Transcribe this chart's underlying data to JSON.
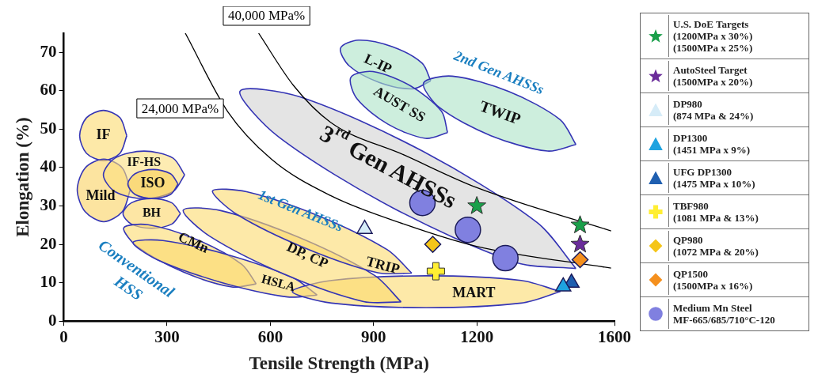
{
  "chart_data": {
    "type": "scatter",
    "xlabel": "Tensile Strength (MPa)",
    "ylabel": "Elongation (%)",
    "xlim": [
      0,
      1600
    ],
    "xticks": [
      0,
      300,
      600,
      900,
      1200,
      1600
    ],
    "ylim": [
      0,
      75
    ],
    "yticks": [
      0,
      10,
      20,
      30,
      40,
      50,
      60,
      70
    ],
    "grid": false,
    "legend": "right",
    "series": [
      {
        "type": "area",
        "name": "IF",
        "color": "#fde9a8",
        "x": [
          183,
          163,
          115,
          66,
          46,
          66,
          115,
          163,
          183
        ],
        "values": [
          48.3,
          43.7,
          41.8,
          43.7,
          48.3,
          53.0,
          54.9,
          53.0,
          48.3
        ]
      },
      {
        "type": "area",
        "name": "Mild",
        "color": "#fce4a0",
        "x": [
          193,
          170,
          116,
          62,
          39,
          62,
          116,
          170,
          193
        ],
        "values": [
          34.2,
          28.5,
          25.9,
          28.5,
          34.2,
          39.9,
          42.2,
          39.9,
          34.2
        ]
      },
      {
        "type": "area",
        "name": "IF-HS",
        "color": "#fdecb2",
        "x": [
          351,
          317,
          233,
          149,
          115,
          149,
          233,
          317,
          351
        ],
        "values": [
          38.1,
          33.7,
          31.9,
          33.7,
          38.1,
          42.5,
          44.3,
          42.5,
          38.1
        ]
      },
      {
        "type": "area",
        "name": "ISO",
        "color": "#fbe29a",
        "x": [
          332,
          310,
          259,
          207,
          186,
          207,
          259,
          310,
          332
        ],
        "values": [
          35.7,
          33.0,
          31.9,
          33.0,
          35.7,
          38.4,
          39.5,
          38.4,
          35.7
        ]
      },
      {
        "type": "area",
        "name": "BH",
        "color": "#fde6a4",
        "x": [
          339,
          314,
          255,
          196,
          172,
          196,
          255,
          314,
          339
        ],
        "values": [
          28.0,
          25.3,
          24.2,
          25.3,
          28.0,
          30.8,
          31.9,
          30.8,
          28.0
        ]
      },
      {
        "type": "area",
        "name": "CMn",
        "color": "#fde9a8",
        "x": [
          559,
          488,
          347,
          216,
          174,
          245,
          387,
          517,
          559
        ],
        "values": [
          9.7,
          8.9,
          12.8,
          19.2,
          24.3,
          25.1,
          21.2,
          14.8,
          9.7
        ]
      },
      {
        "type": "area",
        "name": "HSLA",
        "color": "#fde9a8",
        "x": [
          736,
          650,
          457,
          271,
          201,
          288,
          480,
          666,
          736
        ],
        "values": [
          6.8,
          6.3,
          10.1,
          16.0,
          20.5,
          21.0,
          17.2,
          11.3,
          6.8
        ]
      },
      {
        "type": "area",
        "name": "MART",
        "color": "#fde9a8",
        "x": [
          1443,
          1329,
          1053,
          778,
          664,
          778,
          1053,
          1329,
          1443
        ],
        "values": [
          7.7,
          4.7,
          3.5,
          4.7,
          7.7,
          10.6,
          11.8,
          10.6,
          7.7
        ]
      },
      {
        "type": "area",
        "name": "DP, CP",
        "color": "#fde9a8",
        "x": [
          980,
          871,
          641,
          424,
          347,
          456,
          686,
          903,
          980
        ],
        "values": [
          5.0,
          5.1,
          12.2,
          22.1,
          28.9,
          28.8,
          21.7,
          11.9,
          5.0
        ]
      },
      {
        "type": "area",
        "name": "TRIP",
        "color": "#fde9a8",
        "x": [
          1011,
          912,
          702,
          503,
          432,
          531,
          741,
          940,
          1011
        ],
        "values": [
          12.5,
          12.6,
          19.0,
          27.8,
          33.9,
          33.7,
          27.4,
          18.6,
          12.5
        ]
      },
      {
        "type": "area",
        "name": "L-IP",
        "color": "#cdeedd",
        "x": [
          1066,
          1014,
          916,
          829,
          804,
          856,
          954,
          1041,
          1066
        ],
        "values": [
          62.6,
          60.5,
          62.2,
          66.5,
          71.1,
          73.2,
          71.5,
          67.2,
          62.6
        ]
      },
      {
        "type": "area",
        "name": "AUST SS",
        "color": "#cdeedd",
        "x": [
          1115,
          1051,
          942,
          852,
          834,
          898,
          1007,
          1097,
          1115
        ],
        "values": [
          49.1,
          47.6,
          51.3,
          57.9,
          63.5,
          65.0,
          61.3,
          54.7,
          49.1
        ]
      },
      {
        "type": "area",
        "name": "TWIP",
        "color": "#cdeedd",
        "x": [
          1488,
          1405,
          1241,
          1092,
          1045,
          1129,
          1293,
          1442,
          1488
        ],
        "values": [
          46.0,
          44.3,
          48.3,
          55.6,
          62.0,
          63.8,
          59.8,
          52.5,
          46.0
        ]
      },
      {
        "type": "area",
        "name": "3$^{rd}$ Gen AHSSs",
        "color": "#e4e4e4",
        "x": [
          1488,
          1314,
          956,
          624,
          512,
          686,
          1044,
          1375,
          1488
        ],
        "values": [
          13.7,
          15.3,
          29.5,
          48.0,
          59.9,
          58.4,
          44.2,
          25.7,
          13.7
        ]
      },
      {
        "type": "line",
        "name": "24,000 MPa%",
        "color": "#000000",
        "x": [
          353,
          476,
          603,
          775,
          988,
          1199,
          1590
        ],
        "values": [
          75,
          54.6,
          42.2,
          32.7,
          25.3,
          19.5,
          13.8
        ]
      },
      {
        "type": "line",
        "name": "40,000 MPa%",
        "color": "#000000",
        "x": [
          566,
          668,
          775,
          988,
          1199,
          1590
        ],
        "values": [
          75,
          61.3,
          51.8,
          43.3,
          34.8,
          23.5
        ]
      },
      {
        "marker": "star",
        "name": "U.S. DoE Targets\n(1200MPa x 30%)\n(1500MPa x 25%)",
        "color": "#1a9f4a",
        "x": [
          1200,
          1500
        ],
        "values": [
          30,
          25
        ]
      },
      {
        "marker": "star",
        "name": "AutoSteel Target\n(1500MPa x 20%)",
        "color": "#6a2c9a",
        "x": [
          1500
        ],
        "values": [
          20
        ]
      },
      {
        "marker": "triangle",
        "name": "DP980\n(874 MPa & 24%)",
        "color": "#d6ecf8",
        "x": [
          874
        ],
        "values": [
          24
        ]
      },
      {
        "marker": "triangle",
        "name": "DP1300\n(1451 MPa x 9%)",
        "color": "#1ea3e0",
        "x": [
          1451
        ],
        "values": [
          9
        ]
      },
      {
        "marker": "triangle",
        "name": "UFG DP1300\n(1475 MPa x 10%)",
        "color": "#1f5fb0",
        "x": [
          1475
        ],
        "values": [
          10
        ]
      },
      {
        "marker": "cross",
        "name": "TBF980\n(1081 MPa & 13%)",
        "color": "#ffee33",
        "x": [
          1081
        ],
        "values": [
          13
        ]
      },
      {
        "marker": "diamond",
        "name": "QP980\n(1072 MPa & 20%)",
        "color": "#f5c518",
        "x": [
          1072
        ],
        "values": [
          20
        ]
      },
      {
        "marker": "diamond",
        "name": "QP1500\n(1500MPa x 16%)",
        "color": "#f5901e",
        "x": [
          1500
        ],
        "values": [
          16
        ]
      },
      {
        "marker": "circle",
        "name": "Medium Mn Steel\nMF-665/685/710°C-120",
        "color": "#8080e0",
        "x": [
          1042,
          1174,
          1283
        ],
        "values": [
          30.8,
          23.8,
          16.4
        ]
      }
    ],
    "annotations": [
      "1st Gen AHSSs",
      "2nd Gen AHSSs",
      "Conventional\nHSS"
    ]
  }
}
